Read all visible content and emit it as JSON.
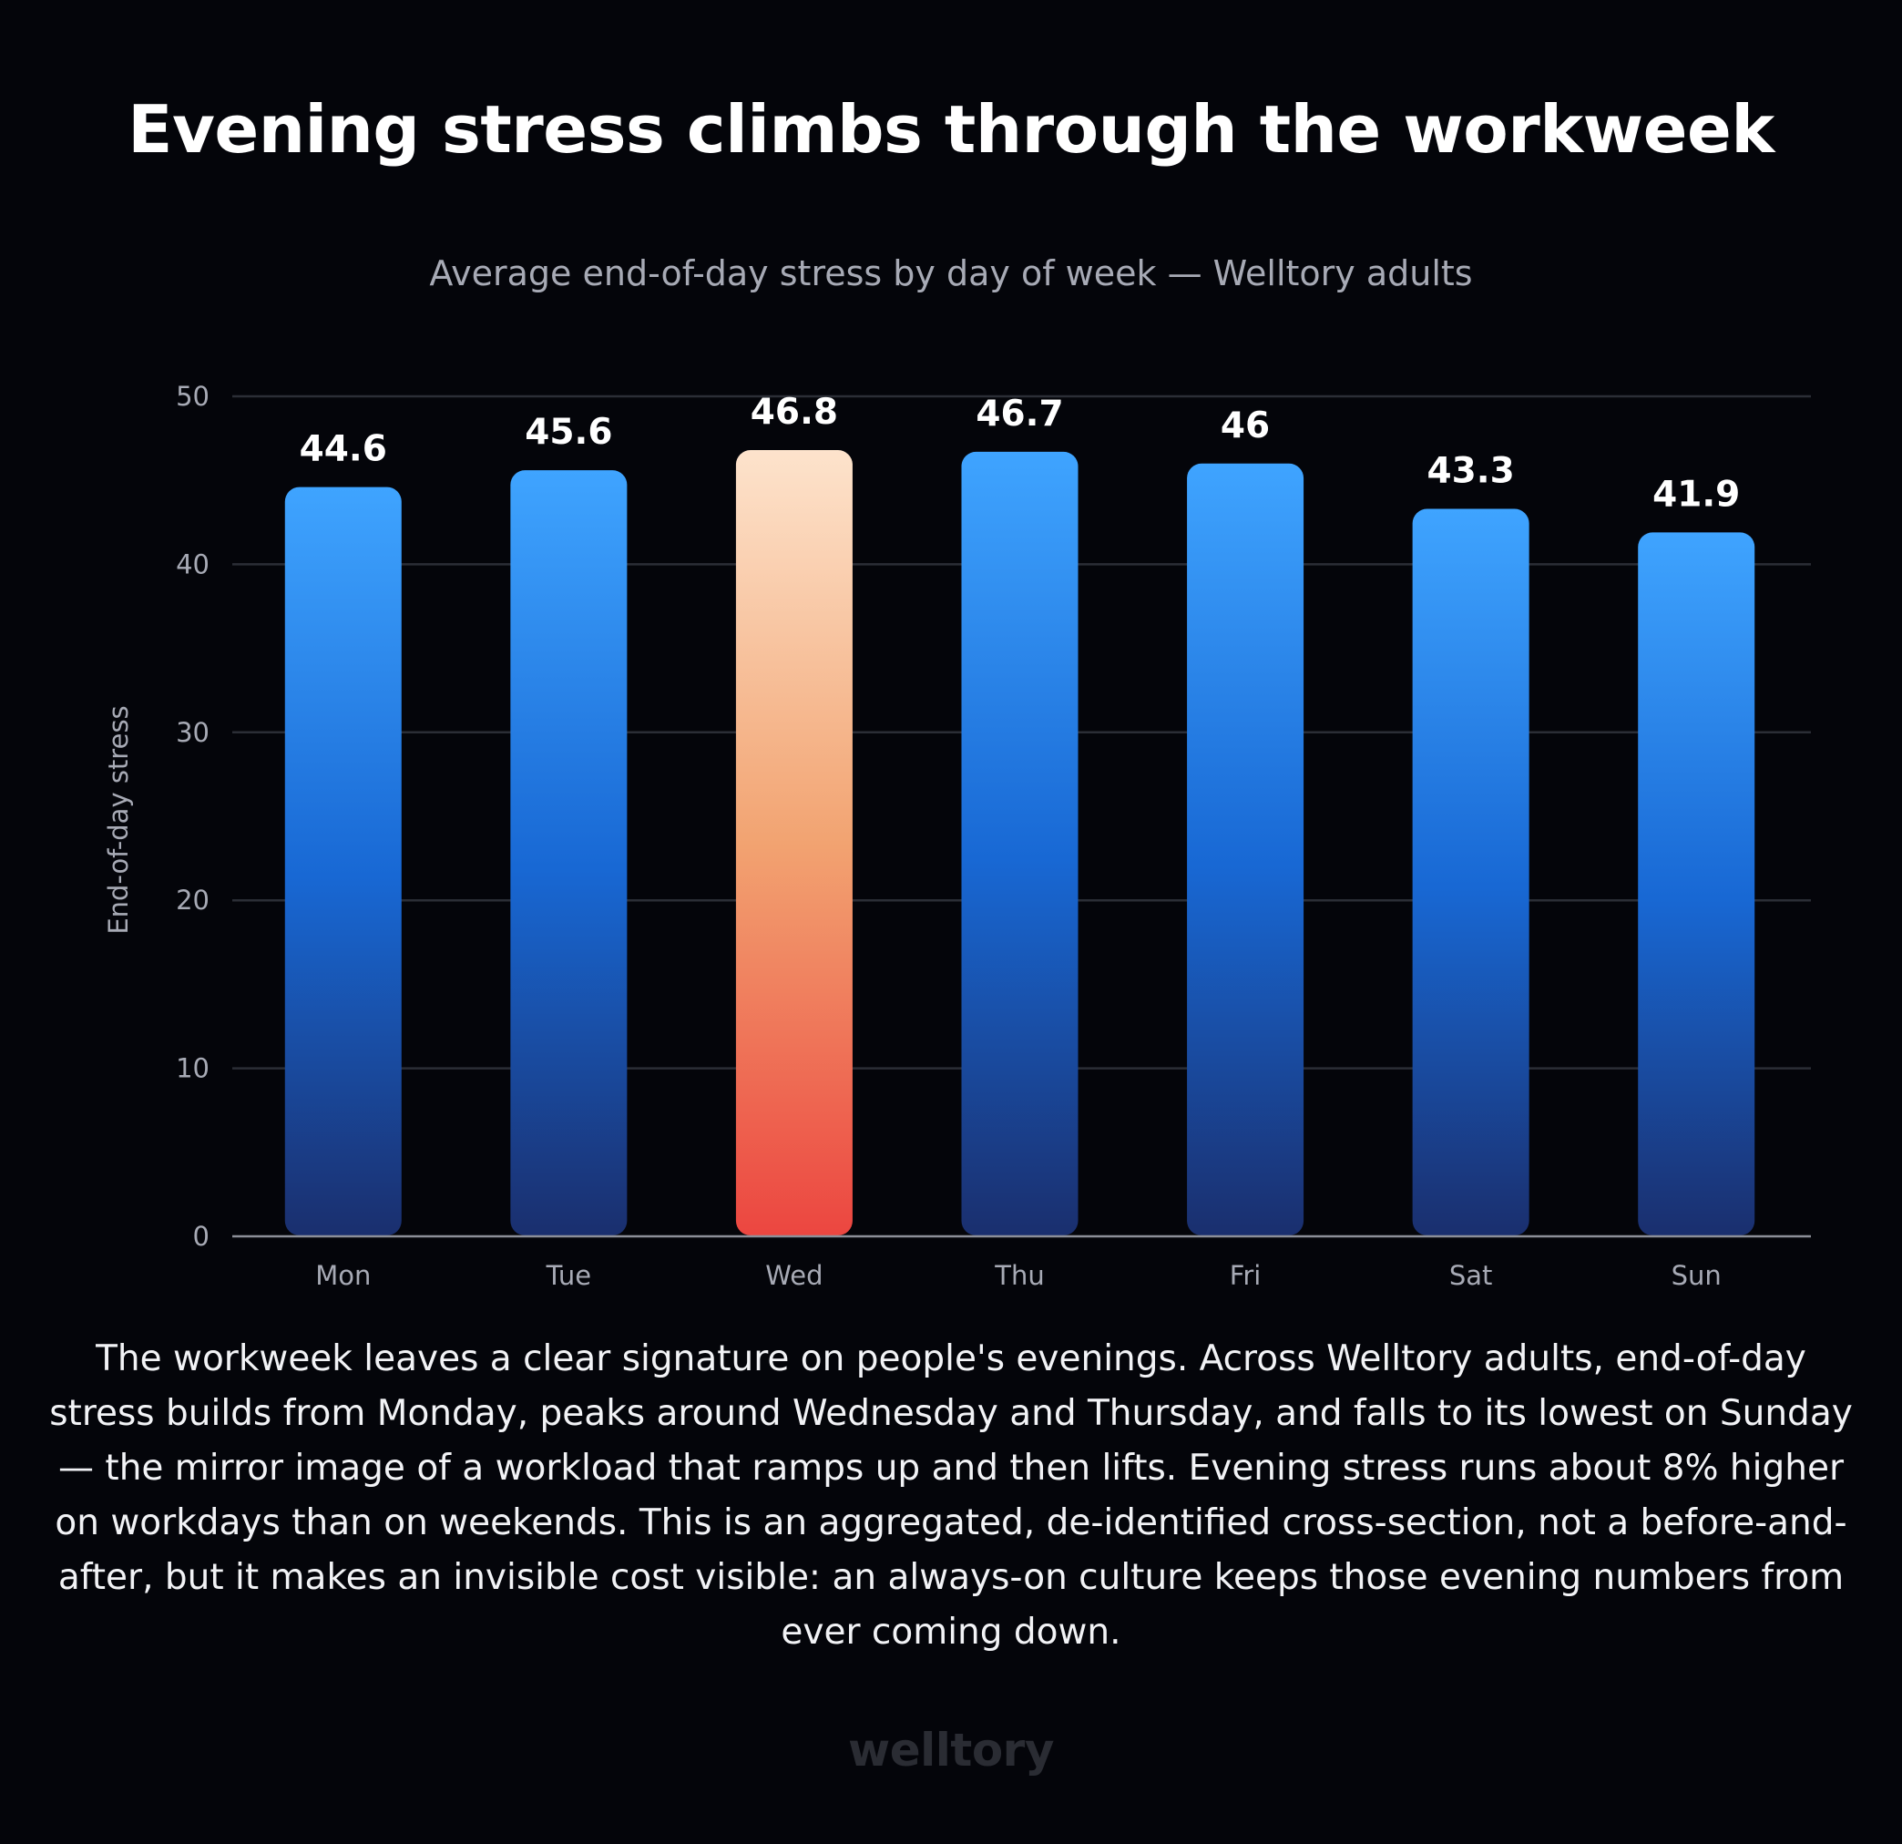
{
  "title": "Evening stress climbs through the workweek",
  "subtitle": "Average end-of-day stress by day of week — Welltory adults",
  "caption": "The workweek leaves a clear signature on people's evenings. Across Welltory adults, end-of-day stress builds from Monday, peaks around Wednesday and Thursday, and falls to its lowest on Sunday — the mirror image of a workload that ramps up and then lifts. Evening stress runs about 8% higher on workdays than on weekends. This is an aggregated, de-identified cross-section, not a before-and-after, but it makes an invisible cost visible: an always-on culture keeps those evening numbers from ever coming down.",
  "logo": "welltory",
  "colors": {
    "background": "#04050a",
    "bar_top": "#3fa4ff",
    "bar_mid": "#1868d4",
    "bar_bottom": "#1a2f6e",
    "highlight_top": "#fde3cc",
    "highlight_mid": "#f2a371",
    "highlight_bottom": "#ec4640",
    "grid": "#2b2e36",
    "axis_text": "#a7aab5"
  },
  "chart_data": {
    "type": "bar",
    "categories": [
      "Mon",
      "Tue",
      "Wed",
      "Thu",
      "Fri",
      "Sat",
      "Sun"
    ],
    "values": [
      44.6,
      45.6,
      46.8,
      46.7,
      46,
      43.3,
      41.9
    ],
    "value_labels": [
      "44.6",
      "45.6",
      "46.8",
      "46.7",
      "46",
      "43.3",
      "41.9"
    ],
    "highlight": "Wed",
    "xlabel": "",
    "ylabel": "End-of-day stress",
    "ylim": [
      0,
      50
    ],
    "yticks": [
      0,
      10,
      20,
      30,
      40,
      50
    ],
    "grid": true,
    "legend": "none"
  }
}
